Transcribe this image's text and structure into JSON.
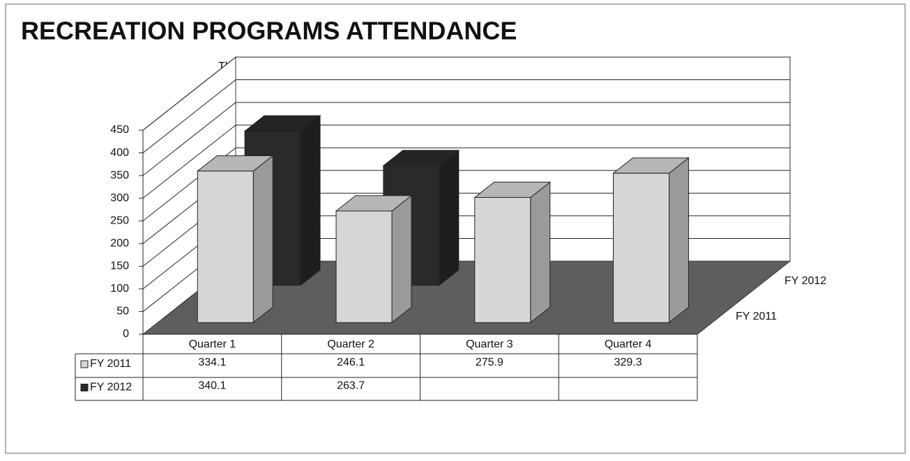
{
  "chart_data": {
    "type": "bar",
    "title": "RECREATION PROGRAMS ATTENDANCE",
    "y_label": "Thousands",
    "categories": [
      "Quarter 1",
      "Quarter 2",
      "Quarter 3",
      "Quarter 4"
    ],
    "series": [
      {
        "name": "FY 2011",
        "color": "#d6d6d6",
        "values": [
          334.1,
          246.1,
          275.9,
          329.3
        ]
      },
      {
        "name": "FY 2012",
        "color": "#2a2a2a",
        "values": [
          340.1,
          263.7,
          null,
          null
        ]
      }
    ],
    "ylim": [
      0,
      450
    ],
    "yticks": [
      0,
      50,
      100,
      150,
      200,
      250,
      300,
      350,
      400,
      450
    ],
    "grid": true,
    "data_table": true
  }
}
